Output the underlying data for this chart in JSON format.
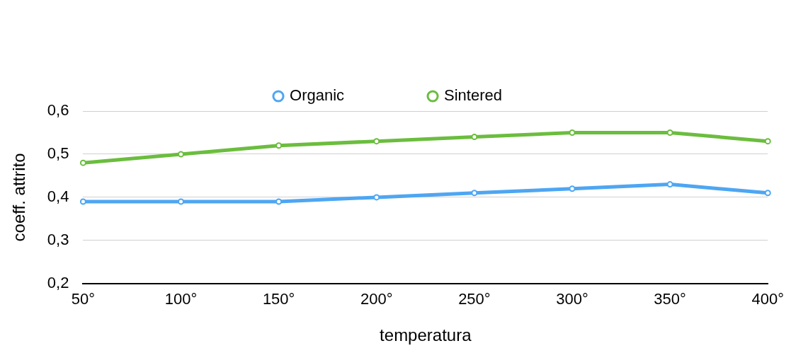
{
  "chart_data": {
    "type": "line",
    "xlabel": "temperatura",
    "ylabel": "coeff. attrito",
    "categories": [
      "50°",
      "100°",
      "150°",
      "200°",
      "250°",
      "300°",
      "350°",
      "400°"
    ],
    "series": [
      {
        "name": "Organic",
        "color": "#4ea6f2",
        "values": [
          0.39,
          0.39,
          0.39,
          0.4,
          0.41,
          0.42,
          0.43,
          0.41
        ]
      },
      {
        "name": "Sintered",
        "color": "#6bbd3e",
        "values": [
          0.48,
          0.5,
          0.52,
          0.53,
          0.54,
          0.55,
          0.55,
          0.53
        ]
      }
    ],
    "ylim": [
      0.2,
      0.6
    ],
    "yticks": [
      {
        "value": 0.2,
        "label": "0,2"
      },
      {
        "value": 0.3,
        "label": "0,3"
      },
      {
        "value": 0.4,
        "label": "0,4"
      },
      {
        "value": 0.5,
        "label": "0,5"
      },
      {
        "value": 0.6,
        "label": "0,6"
      }
    ],
    "grid": "y",
    "legend": "top",
    "marker": "circle",
    "line_style": "solid"
  }
}
